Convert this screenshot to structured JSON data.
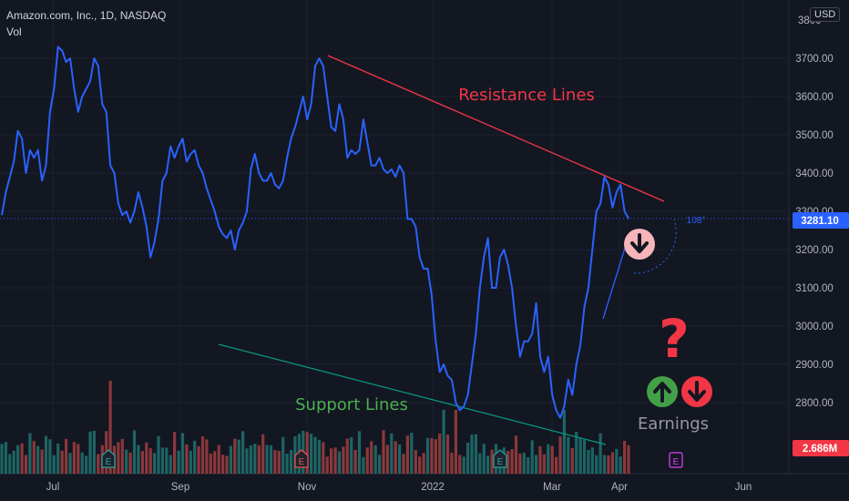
{
  "legend": {
    "symbol": "Amazon.com, Inc., 1D, NASDAQ",
    "volume_label": "Vol"
  },
  "currency_button": "USD",
  "colors": {
    "background": "#131722",
    "price_line": "#2962ff",
    "resistance": "#f23645",
    "support": "#089981",
    "support_text": "#4caf50",
    "vol_up": "#26a69a",
    "vol_down": "#ef5350",
    "axis_text": "#b2b5be",
    "question": "#f23645"
  },
  "chart_data": {
    "type": "line",
    "title": "Amazon.com, Inc., 1D, NASDAQ",
    "x_ticks": [
      "Jul",
      "Sep",
      "Nov",
      "2022",
      "Mar",
      "Apr",
      "Jun"
    ],
    "y_ticks": [
      "3700.00",
      "3600.00",
      "3500.00",
      "3400.00",
      "3300.00",
      "3200.00",
      "3100.00",
      "3000.00",
      "2900.00",
      "2800.00"
    ],
    "top_cut_tick": "3800",
    "ylim": [
      2700,
      3850
    ],
    "last_price": "3281.10",
    "volume_badge": "2.686M",
    "series": [
      {
        "values": [
          3290,
          3350,
          3390,
          3430,
          3510,
          3490,
          3400,
          3460,
          3440,
          3460,
          3380,
          3420,
          3560,
          3620,
          3730,
          3720,
          3690,
          3700,
          3620,
          3560,
          3600,
          3620,
          3640,
          3700,
          3680,
          3580,
          3560,
          3420,
          3400,
          3320,
          3290,
          3300,
          3270,
          3300,
          3350,
          3310,
          3260,
          3180,
          3220,
          3280,
          3380,
          3400,
          3470,
          3440,
          3470,
          3490,
          3430,
          3450,
          3460,
          3420,
          3400,
          3360,
          3330,
          3300,
          3260,
          3240,
          3230,
          3250,
          3200,
          3250,
          3270,
          3300,
          3410,
          3450,
          3400,
          3380,
          3380,
          3400,
          3370,
          3360,
          3380,
          3440,
          3490,
          3520,
          3560,
          3600,
          3540,
          3580,
          3680,
          3700,
          3680,
          3600,
          3520,
          3510,
          3580,
          3540,
          3440,
          3460,
          3450,
          3460,
          3540,
          3480,
          3420,
          3420,
          3440,
          3410,
          3400,
          3410,
          3390,
          3420,
          3400,
          3280,
          3280,
          3260,
          3180,
          3150,
          3150,
          3080,
          2960,
          2880,
          2900,
          2870,
          2860,
          2800,
          2780,
          2790,
          2820,
          2900,
          2980,
          3100,
          3180,
          3230,
          3100,
          3100,
          3180,
          3200,
          3160,
          3100,
          3000,
          2920,
          2960,
          2960,
          2980,
          3060,
          2920,
          2880,
          2920,
          2820,
          2780,
          2760,
          2790,
          2860,
          2820,
          2900,
          2950,
          3050,
          3100,
          3200,
          3300,
          3320,
          3390,
          3370,
          3310,
          3350,
          3370,
          3300,
          3281.1
        ]
      }
    ],
    "volume": [],
    "annotations": {
      "resistance_label": "Resistance Lines",
      "support_label": "Support Lines",
      "earnings_label": "Earnings",
      "angle_label": "108°",
      "question_mark": "?",
      "event_badge": "E"
    }
  }
}
